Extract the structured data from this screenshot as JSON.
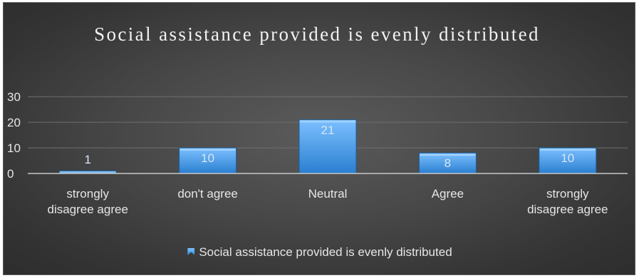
{
  "chart_data": {
    "type": "bar",
    "title": "Social assistance provided is evenly distributed",
    "categories": [
      "strongly disagree agree",
      "don't agree",
      "Neutral",
      "Agree",
      "strongly disagree agree"
    ],
    "category_lines": [
      [
        "strongly",
        "disagree agree"
      ],
      [
        "don't agree"
      ],
      [
        "Neutral"
      ],
      [
        "Agree"
      ],
      [
        "strongly",
        "disagree agree"
      ]
    ],
    "series": [
      {
        "name": "Social assistance provided is evenly distributed",
        "values": [
          1,
          10,
          21,
          8,
          10
        ]
      }
    ],
    "xlabel": "",
    "ylabel": "",
    "ylim": [
      0,
      30
    ],
    "yticks": [
      0,
      10,
      20,
      30
    ],
    "grid": true,
    "legend_position": "bottom",
    "data_labels": true,
    "colors": {
      "bar_top": "#7cc0ff",
      "bar_bottom": "#2a7fd0",
      "bar_edge": "#1b5f9f",
      "gridline": "#6f6f6f",
      "axis_line": "#c8c8c8",
      "text": "#e6e6e6",
      "background": "#404040"
    }
  }
}
